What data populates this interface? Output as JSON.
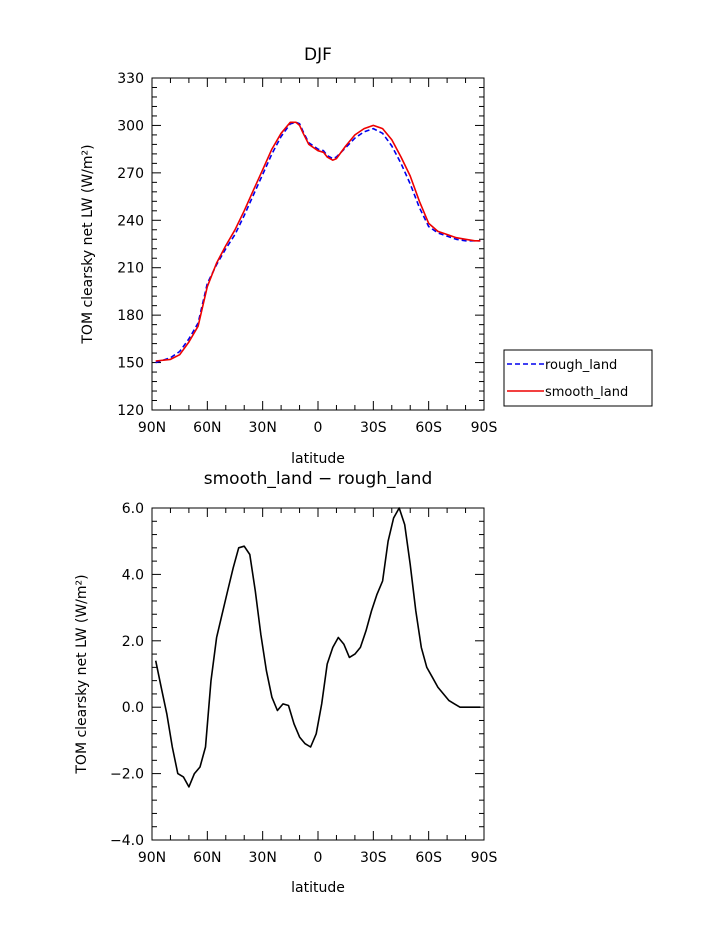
{
  "chart_data": [
    {
      "type": "line",
      "title": "DJF",
      "xlabel": "latitude",
      "ylabel": "TOM clearsky net LW (W/m²)",
      "xlim": [
        -90,
        90
      ],
      "ylim": [
        120,
        330
      ],
      "x_ticks": [
        -90,
        -60,
        -30,
        0,
        30,
        60,
        90
      ],
      "x_tick_labels": [
        "90N",
        "60N",
        "30N",
        "0",
        "30S",
        "60S",
        "90S"
      ],
      "y_ticks": [
        120,
        150,
        180,
        210,
        240,
        270,
        300,
        330
      ],
      "y_tick_labels": [
        "120",
        "150",
        "180",
        "210",
        "240",
        "270",
        "300",
        "330"
      ],
      "legend_position": "right",
      "series": [
        {
          "name": "rough_land",
          "color": "#0000ee",
          "dash": "dashed",
          "x": [
            -88,
            -80,
            -75,
            -70,
            -65,
            -60,
            -55,
            -50,
            -45,
            -40,
            -35,
            -30,
            -25,
            -20,
            -15,
            -12,
            -10,
            -8,
            -5,
            0,
            3,
            5,
            8,
            10,
            15,
            20,
            25,
            30,
            35,
            40,
            45,
            50,
            55,
            60,
            65,
            70,
            75,
            80,
            85,
            88
          ],
          "y": [
            150,
            153,
            157,
            165,
            175,
            200,
            212,
            222,
            231,
            243,
            256,
            269,
            282,
            293,
            301,
            302,
            301,
            296,
            289,
            285,
            284,
            281,
            279,
            280,
            286,
            292,
            296,
            298,
            295,
            287,
            276,
            263,
            248,
            236,
            232,
            230,
            228,
            227,
            227,
            227
          ]
        },
        {
          "name": "smooth_land",
          "color": "#ee0000",
          "dash": "solid",
          "x": [
            -88,
            -80,
            -75,
            -70,
            -65,
            -60,
            -55,
            -50,
            -45,
            -40,
            -35,
            -30,
            -25,
            -20,
            -15,
            -12,
            -10,
            -8,
            -5,
            0,
            3,
            5,
            8,
            10,
            15,
            20,
            25,
            30,
            35,
            40,
            45,
            50,
            55,
            60,
            65,
            70,
            75,
            80,
            85,
            88
          ],
          "y": [
            151,
            152,
            155,
            163,
            173,
            198,
            213,
            224,
            234,
            246,
            259,
            272,
            285,
            295,
            302,
            302,
            300,
            295,
            288,
            284,
            283,
            280,
            278,
            279,
            287,
            294,
            298,
            300,
            298,
            291,
            280,
            268,
            252,
            238,
            233,
            231,
            229,
            228,
            227,
            227
          ]
        }
      ]
    },
    {
      "type": "line",
      "title": "smooth_land − rough_land",
      "xlabel": "latitude",
      "ylabel": "TOM clearsky net LW (W/m²)",
      "xlim": [
        -90,
        90
      ],
      "ylim": [
        -4,
        6
      ],
      "x_ticks": [
        -90,
        -60,
        -30,
        0,
        30,
        60,
        90
      ],
      "x_tick_labels": [
        "90N",
        "60N",
        "30N",
        "0",
        "30S",
        "60S",
        "90S"
      ],
      "y_ticks": [
        -4,
        -2,
        0,
        2,
        4,
        6
      ],
      "y_tick_labels": [
        "−4.0",
        "−2.0",
        "0.0",
        "2.0",
        "4.0",
        "6.0"
      ],
      "series": [
        {
          "color": "#000000",
          "x": [
            -88,
            -85,
            -82,
            -79,
            -76,
            -73,
            -70,
            -67,
            -64,
            -61,
            -58,
            -55,
            -52,
            -49,
            -46,
            -43,
            -40,
            -37,
            -34,
            -31,
            -28,
            -25,
            -22,
            -19,
            -16,
            -13,
            -10,
            -7,
            -4,
            -1,
            2,
            5,
            8,
            11,
            14,
            17,
            20,
            23,
            26,
            29,
            32,
            35,
            38,
            41,
            44,
            47,
            50,
            53,
            56,
            59,
            62,
            65,
            68,
            71,
            74,
            77,
            80,
            83,
            86,
            88
          ],
          "y": [
            1.4,
            0.6,
            -0.2,
            -1.2,
            -2.0,
            -2.1,
            -2.4,
            -2.0,
            -1.8,
            -1.2,
            0.8,
            2.1,
            2.8,
            3.5,
            4.2,
            4.8,
            4.85,
            4.6,
            3.5,
            2.2,
            1.1,
            0.3,
            -0.1,
            0.1,
            0.05,
            -0.5,
            -0.9,
            -1.1,
            -1.2,
            -0.8,
            0.1,
            1.3,
            1.8,
            2.1,
            1.9,
            1.5,
            1.6,
            1.8,
            2.3,
            2.9,
            3.4,
            3.8,
            5.0,
            5.7,
            6.0,
            5.5,
            4.3,
            2.9,
            1.8,
            1.2,
            0.9,
            0.6,
            0.4,
            0.2,
            0.1,
            0.0,
            0.0,
            0.0,
            0.0,
            0.0
          ]
        }
      ]
    }
  ]
}
